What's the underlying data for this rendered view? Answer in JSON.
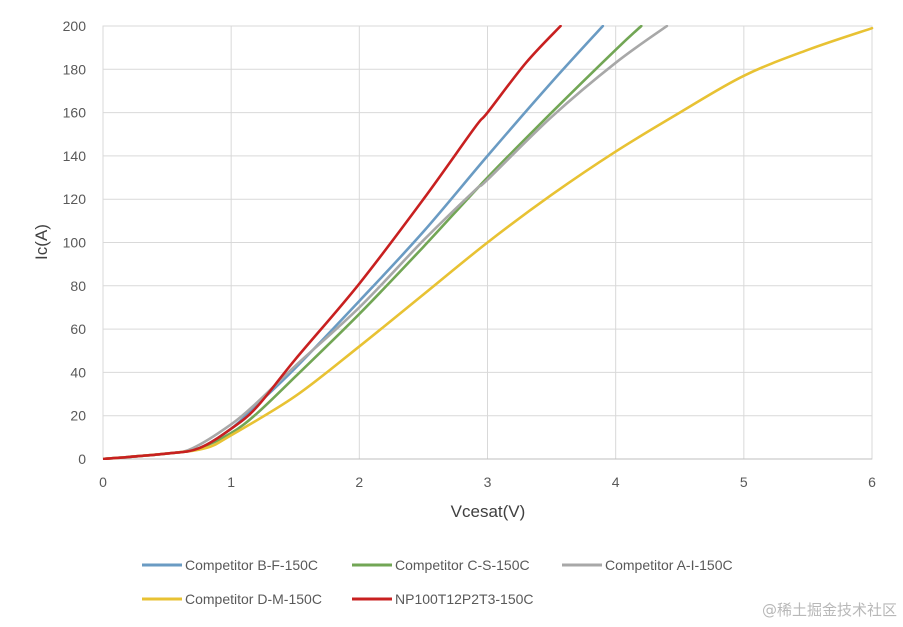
{
  "chart_data": {
    "type": "line",
    "xlabel": "Vcesat(V)",
    "ylabel": "Ic(A)",
    "xlim": [
      0,
      6
    ],
    "ylim": [
      0,
      200
    ],
    "x_ticks": [
      0,
      1,
      2,
      3,
      4,
      5,
      6
    ],
    "y_ticks": [
      0,
      20,
      40,
      60,
      80,
      100,
      120,
      140,
      160,
      180,
      200
    ],
    "grid": true,
    "legend_position": "bottom",
    "series": [
      {
        "name": "Competitor B-F-150C",
        "color": "#6a9bc3",
        "points": [
          [
            0,
            0
          ],
          [
            0.5,
            2.5
          ],
          [
            0.75,
            5
          ],
          [
            1,
            14
          ],
          [
            1.2,
            25
          ],
          [
            1.5,
            42
          ],
          [
            2,
            73
          ],
          [
            2.5,
            105
          ],
          [
            3,
            140
          ],
          [
            3.5,
            174
          ],
          [
            3.9,
            200
          ]
        ]
      },
      {
        "name": "Competitor C-S-150C",
        "color": "#72a655",
        "points": [
          [
            0,
            0
          ],
          [
            0.5,
            2.5
          ],
          [
            0.75,
            5
          ],
          [
            1,
            12
          ],
          [
            1.2,
            21
          ],
          [
            1.5,
            38
          ],
          [
            2,
            67
          ],
          [
            2.5,
            98
          ],
          [
            3,
            130
          ],
          [
            3.5,
            160
          ],
          [
            4,
            189
          ],
          [
            4.2,
            200
          ]
        ]
      },
      {
        "name": "Competitor A-I-150C",
        "color": "#a8a8a8",
        "points": [
          [
            0,
            0
          ],
          [
            0.5,
            2.5
          ],
          [
            0.7,
            5
          ],
          [
            1,
            16
          ],
          [
            1.2,
            26
          ],
          [
            1.5,
            43
          ],
          [
            2,
            70
          ],
          [
            2.5,
            101
          ],
          [
            2.9,
            124
          ],
          [
            3,
            129
          ],
          [
            3.5,
            158
          ],
          [
            4,
            183
          ],
          [
            4.4,
            200
          ]
        ]
      },
      {
        "name": "Competitor D-M-150C",
        "color": "#e8c233",
        "points": [
          [
            0,
            0
          ],
          [
            0.5,
            2.5
          ],
          [
            0.8,
            5
          ],
          [
            1,
            11
          ],
          [
            1.5,
            29
          ],
          [
            2,
            52
          ],
          [
            2.5,
            76
          ],
          [
            3,
            100
          ],
          [
            3.5,
            122
          ],
          [
            4,
            142
          ],
          [
            4.5,
            160
          ],
          [
            5,
            177
          ],
          [
            5.5,
            189
          ],
          [
            6,
            199
          ]
        ]
      },
      {
        "name": "NP100T12P2T3-150C",
        "color": "#c82020",
        "points": [
          [
            0,
            0
          ],
          [
            0.5,
            2.5
          ],
          [
            0.75,
            5
          ],
          [
            1,
            14
          ],
          [
            1.2,
            24
          ],
          [
            1.5,
            46
          ],
          [
            2,
            81
          ],
          [
            2.5,
            120
          ],
          [
            2.9,
            153
          ],
          [
            3,
            160
          ],
          [
            3.3,
            183
          ],
          [
            3.57,
            200
          ]
        ]
      }
    ]
  },
  "watermark": "@稀土掘金技术社区"
}
